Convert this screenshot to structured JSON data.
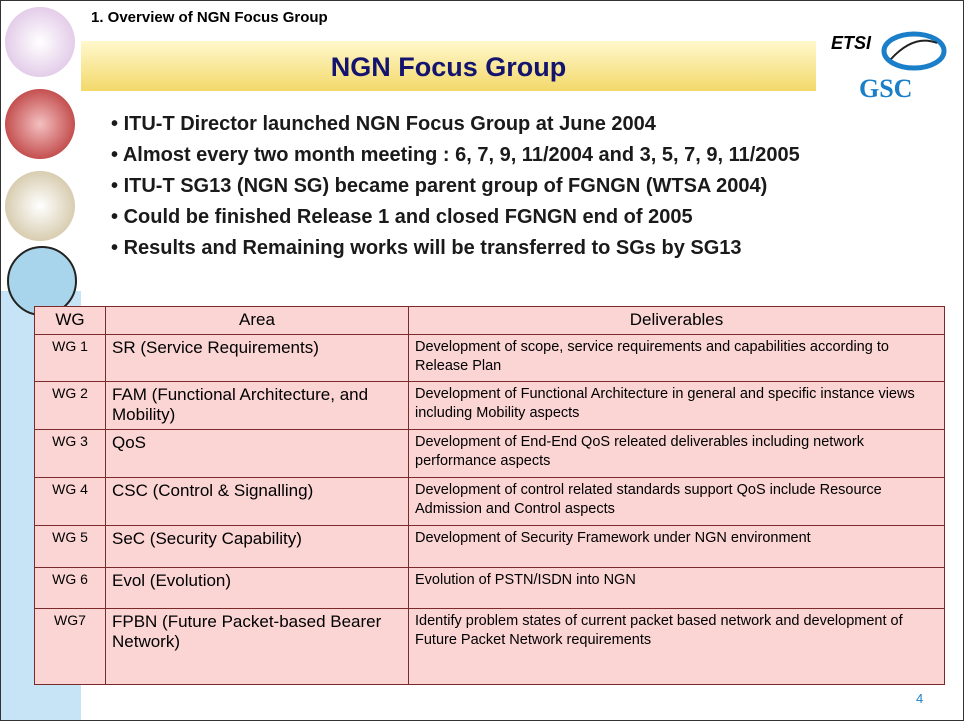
{
  "header": {
    "section": "1. Overview of NGN Focus Group",
    "title": "NGN Focus Group",
    "logo_top": "ETSI",
    "logo_bottom": "GSC"
  },
  "bullets": [
    "ITU-T Director launched NGN Focus Group at June 2004",
    "Almost every two month meeting : 6, 7, 9, 11/2004 and 3, 5, 7, 9, 11/2005",
    "ITU-T SG13 (NGN SG) became parent group of FGNGN (WTSA 2004)",
    "Could be finished Release 1 and closed FGNGN end of 2005",
    "Results and Remaining works will be transferred to SGs by SG13"
  ],
  "table": {
    "columns": [
      "WG",
      "Area",
      "Deliverables"
    ],
    "rows": [
      [
        "WG 1",
        "SR (Service Requirements)",
        "Development of scope, service requirements and capabilities according to Release Plan"
      ],
      [
        "WG 2",
        "FAM (Functional Architecture, and Mobility)",
        "Development of Functional Architecture in general and specific instance views including Mobility aspects"
      ],
      [
        "WG 3",
        "QoS",
        "Development of End-End QoS releated deliverables including network performance aspects"
      ],
      [
        "WG 4",
        "CSC (Control & Signalling)",
        "Development of control related standards support QoS include Resource Admission and Control aspects"
      ],
      [
        "WG 5",
        "SeC (Security Capability)",
        "Development of Security Framework under NGN environment"
      ],
      [
        "WG 6",
        "Evol (Evolution)",
        "Evolution of PSTN/ISDN into NGN"
      ],
      [
        "WG7",
        "FPBN (Future Packet-based Bearer Network)",
        "Identify problem states of current packet based network and development of Future Packet Network requirements"
      ]
    ]
  },
  "page_number": "4"
}
